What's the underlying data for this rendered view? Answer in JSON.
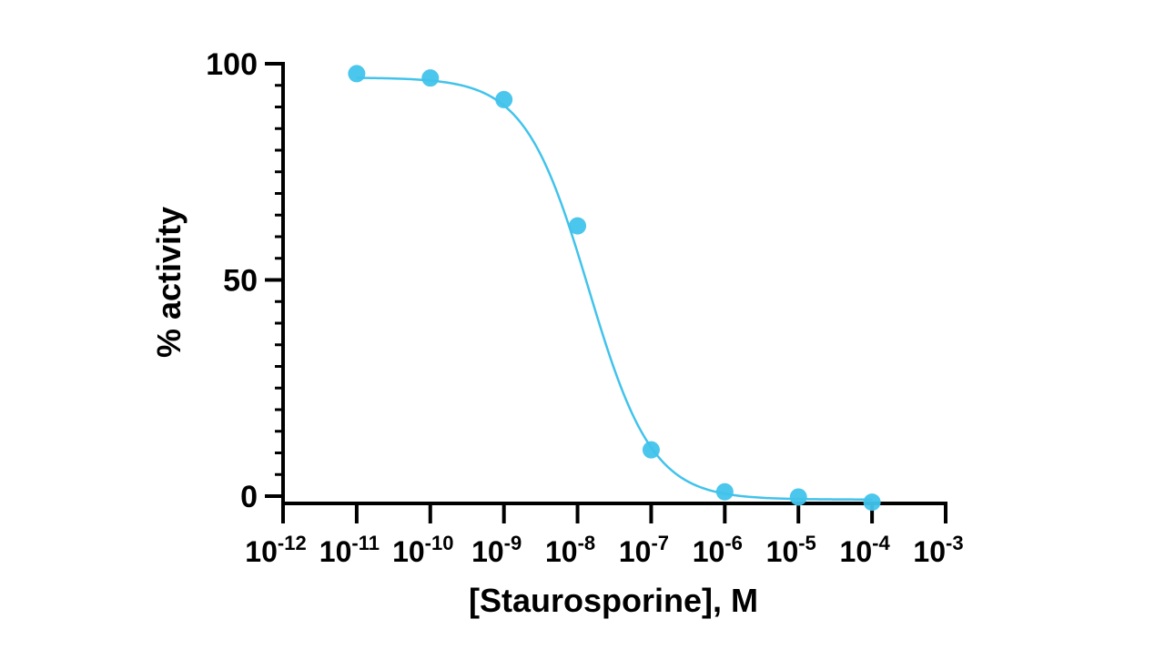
{
  "chart_data": {
    "type": "scatter",
    "title": "",
    "xlabel": "[Staurosporine], M",
    "ylabel": "% activity",
    "x_scale": "log",
    "xlim": [
      1e-12,
      0.001
    ],
    "ylim": [
      0,
      100
    ],
    "x_ticks": [
      {
        "value": 1e-12,
        "base": "10",
        "exp": "-12"
      },
      {
        "value": 1e-11,
        "base": "10",
        "exp": "-11"
      },
      {
        "value": 1e-10,
        "base": "10",
        "exp": "-10"
      },
      {
        "value": 1e-09,
        "base": "10",
        "exp": "-9"
      },
      {
        "value": 1e-08,
        "base": "10",
        "exp": "-8"
      },
      {
        "value": 1e-07,
        "base": "10",
        "exp": "-7"
      },
      {
        "value": 1e-06,
        "base": "10",
        "exp": "-6"
      },
      {
        "value": 1e-05,
        "base": "10",
        "exp": "-5"
      },
      {
        "value": 0.0001,
        "base": "10",
        "exp": "-4"
      },
      {
        "value": 0.001,
        "base": "10",
        "exp": "-3"
      }
    ],
    "y_ticks": [
      {
        "value": 0,
        "label": "0"
      },
      {
        "value": 50,
        "label": "50"
      },
      {
        "value": 100,
        "label": "100"
      }
    ],
    "y_minor_step": 5,
    "grid": false,
    "legend": "none",
    "series": [
      {
        "x": [
          1e-11,
          1e-10,
          1e-09,
          1e-08,
          1e-07,
          1e-06,
          1e-05,
          0.0001
        ],
        "y": [
          97.7,
          96.7,
          91.7,
          62.5,
          10.7,
          1.0,
          -0.2,
          -1.4
        ],
        "fit": {
          "model": "four-parameter logistic",
          "top": 96.8,
          "bottom": -0.8,
          "log_ic50": -7.85,
          "hill_slope": -1.0
        },
        "color": "#41c3eb"
      }
    ]
  }
}
